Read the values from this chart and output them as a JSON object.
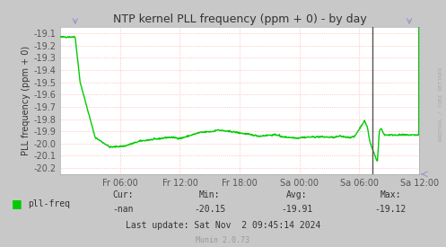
{
  "title": "NTP kernel PLL frequency (ppm + 0) - by day",
  "ylabel": "PLL frequency (ppm + 0)",
  "ylim": [
    -20.25,
    -19.05
  ],
  "yticks": [
    -20.2,
    -20.1,
    -20.0,
    -19.9,
    -19.8,
    -19.7,
    -19.6,
    -19.5,
    -19.4,
    -19.3,
    -19.2,
    -19.1
  ],
  "xtick_labels": [
    "Fr 06:00",
    "Fr 12:00",
    "Fr 18:00",
    "Sa 00:00",
    "Sa 06:00",
    "Sa 12:00"
  ],
  "bg_color": "#c8c8c8",
  "plot_bg_color": "#ffffff",
  "grid_color_h": "#ffb0b0",
  "grid_color_v": "#ffb0b0",
  "line_color": "#00cc00",
  "title_color": "#333333",
  "label_color": "#333333",
  "tick_color": "#555555",
  "legend_label": "pll-freq",
  "legend_color": "#00cc00",
  "cur_label": "Cur:",
  "cur_val": "-nan",
  "min_label": "Min:",
  "min_val": "-20.15",
  "avg_label": "Avg:",
  "avg_val": "-19.91",
  "max_label": "Max:",
  "max_val": "-19.12",
  "last_update": "Last update: Sat Nov  2 09:45:14 2024",
  "munin_version": "Munin 2.0.73",
  "watermark": "RRDTOOL / TOBI OETIKER",
  "vline_color": "#555555",
  "arrow_color": "#9999cc"
}
